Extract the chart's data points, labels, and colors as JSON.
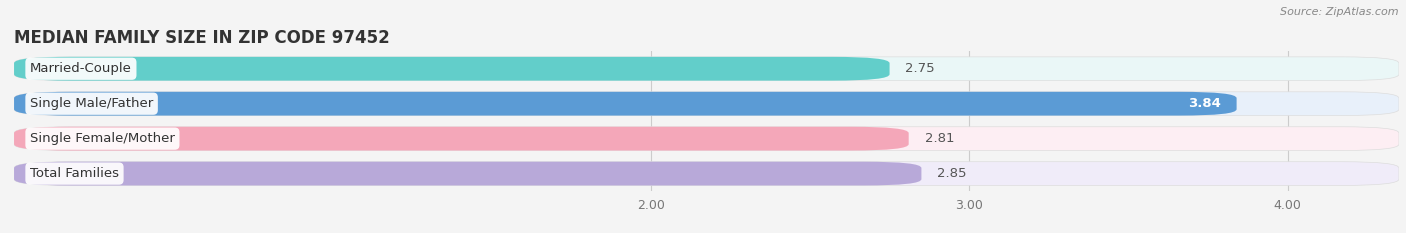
{
  "title": "MEDIAN FAMILY SIZE IN ZIP CODE 97452",
  "source": "Source: ZipAtlas.com",
  "categories": [
    "Married-Couple",
    "Single Male/Father",
    "Single Female/Mother",
    "Total Families"
  ],
  "values": [
    2.75,
    3.84,
    2.81,
    2.85
  ],
  "bar_colors": [
    "#62ceca",
    "#5b9bd5",
    "#f4a7b9",
    "#b8a9d9"
  ],
  "bar_bg_colors": [
    "#eaf7f7",
    "#e8f0fa",
    "#fdeef3",
    "#f0ecf9"
  ],
  "xlim_left": 0.0,
  "xlim_right": 4.35,
  "xticks": [
    2.0,
    3.0,
    4.0
  ],
  "bar_height": 0.68,
  "label_fontsize": 9.5,
  "value_fontsize": 9.5,
  "title_fontsize": 12,
  "background_color": "#f4f4f4"
}
